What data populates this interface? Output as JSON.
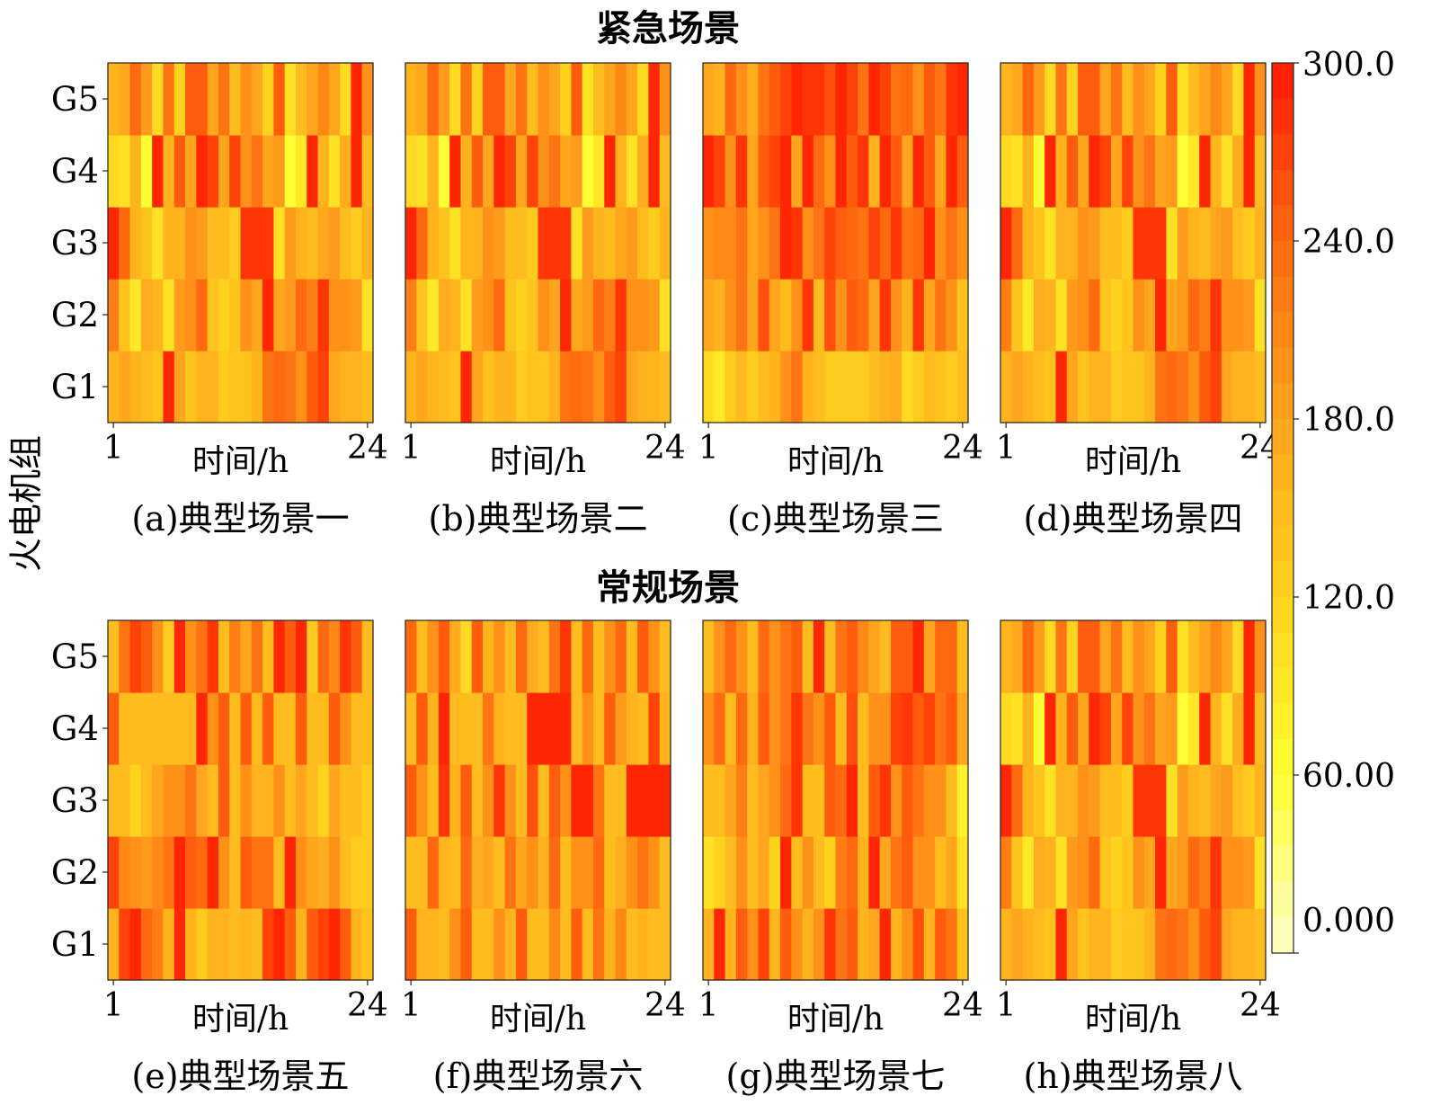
{
  "chart_data": {
    "type": "heatmap",
    "section_titles": [
      "紧急场景",
      "常规场景"
    ],
    "ylabel": "火电机组",
    "y_categories": [
      "G1",
      "G2",
      "G3",
      "G4",
      "G5"
    ],
    "x_tick_labels": [
      "1",
      "24"
    ],
    "xlabel": "时间/h",
    "colormap": [
      "#ffffcc",
      "#ffff33",
      "#ffd21e",
      "#ffa51e",
      "#ff6a10",
      "#ff1a00"
    ],
    "colorbar": {
      "min": 0,
      "max": 300,
      "tick_labels": [
        "0.000",
        "60.00",
        "120.0",
        "180.0",
        "240.0",
        "300.0"
      ]
    },
    "panels": [
      {
        "label": "(a)典型场景一",
        "values": {
          "G5": [
            160,
            175,
            240,
            190,
            110,
            230,
            120,
            250,
            250,
            180,
            230,
            150,
            200,
            180,
            120,
            250,
            100,
            150,
            180,
            210,
            180,
            110,
            290,
            200
          ],
          "G4": [
            110,
            100,
            160,
            60,
            290,
            160,
            250,
            180,
            290,
            270,
            180,
            270,
            200,
            230,
            180,
            190,
            60,
            90,
            290,
            160,
            100,
            170,
            290,
            150
          ],
          "G3": [
            290,
            240,
            160,
            140,
            100,
            160,
            160,
            200,
            190,
            150,
            150,
            130,
            280,
            280,
            280,
            100,
            190,
            160,
            150,
            180,
            190,
            150,
            130,
            160
          ],
          "G2": [
            220,
            140,
            90,
            170,
            160,
            100,
            190,
            200,
            240,
            140,
            120,
            140,
            200,
            180,
            290,
            180,
            190,
            240,
            220,
            280,
            200,
            200,
            190,
            100
          ],
          "G1": [
            160,
            180,
            160,
            150,
            140,
            290,
            180,
            140,
            160,
            160,
            130,
            140,
            140,
            160,
            230,
            240,
            230,
            200,
            250,
            270,
            180,
            160,
            160,
            150
          ]
        }
      },
      {
        "label": "(b)典型场景二",
        "values": {
          "G5": [
            160,
            175,
            240,
            190,
            110,
            230,
            120,
            250,
            250,
            180,
            230,
            150,
            200,
            180,
            120,
            250,
            100,
            150,
            180,
            210,
            180,
            110,
            290,
            200
          ],
          "G4": [
            110,
            100,
            160,
            60,
            290,
            160,
            250,
            180,
            290,
            270,
            180,
            270,
            200,
            230,
            180,
            190,
            60,
            90,
            290,
            160,
            100,
            170,
            290,
            150
          ],
          "G3": [
            290,
            240,
            160,
            140,
            100,
            160,
            160,
            200,
            190,
            150,
            150,
            130,
            280,
            280,
            280,
            100,
            190,
            160,
            150,
            180,
            190,
            150,
            130,
            160
          ],
          "G2": [
            220,
            140,
            90,
            170,
            160,
            100,
            190,
            200,
            240,
            140,
            120,
            140,
            200,
            180,
            290,
            180,
            190,
            240,
            220,
            280,
            200,
            200,
            190,
            100
          ],
          "G1": [
            160,
            180,
            160,
            150,
            140,
            290,
            180,
            140,
            160,
            160,
            130,
            140,
            140,
            160,
            230,
            240,
            230,
            200,
            250,
            270,
            180,
            160,
            160,
            150
          ]
        }
      },
      {
        "label": "(c)典型场景三",
        "values": {
          "G5": [
            180,
            160,
            240,
            200,
            170,
            230,
            250,
            270,
            290,
            280,
            280,
            260,
            290,
            270,
            230,
            290,
            270,
            230,
            240,
            200,
            250,
            230,
            280,
            290
          ],
          "G4": [
            290,
            270,
            200,
            280,
            180,
            250,
            270,
            290,
            180,
            290,
            240,
            200,
            290,
            250,
            280,
            160,
            290,
            250,
            180,
            290,
            250,
            180,
            290,
            250
          ],
          "G3": [
            200,
            210,
            210,
            230,
            180,
            200,
            230,
            290,
            280,
            200,
            230,
            270,
            250,
            240,
            230,
            270,
            240,
            280,
            230,
            240,
            290,
            200,
            230,
            200
          ],
          "G2": [
            180,
            160,
            200,
            230,
            180,
            260,
            180,
            150,
            200,
            280,
            150,
            260,
            200,
            250,
            240,
            180,
            280,
            200,
            160,
            280,
            180,
            230,
            200,
            140
          ],
          "G1": [
            110,
            90,
            130,
            150,
            130,
            150,
            160,
            200,
            230,
            160,
            150,
            130,
            130,
            130,
            130,
            150,
            160,
            170,
            110,
            130,
            150,
            140,
            130,
            150
          ]
        }
      },
      {
        "label": "(d)典型场景四",
        "values": {
          "G5": [
            160,
            175,
            240,
            190,
            110,
            230,
            120,
            250,
            250,
            180,
            230,
            150,
            200,
            180,
            120,
            250,
            100,
            150,
            180,
            210,
            180,
            110,
            290,
            200
          ],
          "G4": [
            110,
            100,
            160,
            60,
            290,
            160,
            250,
            180,
            290,
            270,
            180,
            270,
            200,
            230,
            180,
            190,
            60,
            90,
            290,
            160,
            100,
            170,
            290,
            150
          ],
          "G3": [
            290,
            240,
            160,
            140,
            100,
            160,
            160,
            200,
            190,
            150,
            150,
            130,
            280,
            280,
            280,
            100,
            190,
            160,
            150,
            180,
            190,
            150,
            130,
            160
          ],
          "G2": [
            220,
            140,
            90,
            170,
            160,
            100,
            190,
            200,
            240,
            140,
            120,
            140,
            200,
            180,
            290,
            180,
            190,
            240,
            220,
            280,
            200,
            200,
            190,
            100
          ],
          "G1": [
            160,
            180,
            160,
            150,
            140,
            290,
            180,
            140,
            160,
            160,
            130,
            140,
            140,
            160,
            230,
            240,
            230,
            200,
            250,
            270,
            180,
            160,
            160,
            150
          ]
        }
      },
      {
        "label": "(e)典型场景五",
        "values": {
          "G5": [
            150,
            230,
            270,
            250,
            200,
            130,
            290,
            200,
            230,
            280,
            150,
            220,
            180,
            230,
            150,
            290,
            250,
            290,
            130,
            240,
            210,
            280,
            250,
            150
          ],
          "G4": [
            250,
            150,
            150,
            150,
            150,
            150,
            150,
            150,
            290,
            200,
            250,
            150,
            250,
            150,
            250,
            150,
            150,
            250,
            150,
            150,
            250,
            200,
            150,
            150
          ],
          "G3": [
            150,
            150,
            120,
            150,
            180,
            200,
            200,
            230,
            180,
            150,
            250,
            150,
            200,
            160,
            160,
            200,
            150,
            180,
            150,
            120,
            180,
            150,
            150,
            130
          ],
          "G2": [
            270,
            210,
            200,
            190,
            210,
            230,
            290,
            250,
            240,
            290,
            200,
            150,
            250,
            230,
            230,
            150,
            290,
            200,
            180,
            170,
            200,
            150,
            130,
            130
          ],
          "G1": [
            160,
            270,
            290,
            240,
            220,
            160,
            290,
            160,
            130,
            160,
            160,
            150,
            160,
            150,
            270,
            290,
            250,
            160,
            250,
            270,
            290,
            250,
            160,
            140
          ]
        }
      },
      {
        "label": "(f)典型场景六",
        "values": {
          "G5": [
            240,
            150,
            200,
            250,
            170,
            110,
            250,
            160,
            200,
            150,
            240,
            170,
            150,
            230,
            280,
            150,
            240,
            150,
            200,
            240,
            150,
            250,
            200,
            150
          ],
          "G4": [
            150,
            250,
            160,
            290,
            150,
            150,
            150,
            230,
            160,
            150,
            150,
            290,
            290,
            290,
            290,
            150,
            200,
            150,
            250,
            190,
            160,
            150,
            270,
            160
          ],
          "G3": [
            250,
            200,
            150,
            280,
            160,
            250,
            150,
            200,
            280,
            200,
            150,
            260,
            150,
            250,
            200,
            290,
            290,
            230,
            150,
            150,
            290,
            290,
            290,
            290
          ],
          "G2": [
            150,
            150,
            240,
            160,
            150,
            240,
            170,
            180,
            150,
            230,
            180,
            200,
            160,
            240,
            150,
            200,
            200,
            240,
            150,
            170,
            200,
            230,
            200,
            150
          ],
          "G1": [
            250,
            160,
            160,
            150,
            200,
            250,
            150,
            150,
            200,
            160,
            250,
            150,
            150,
            210,
            150,
            250,
            150,
            230,
            160,
            210,
            150,
            160,
            150,
            150
          ]
        }
      },
      {
        "label": "(g)典型场景七",
        "values": {
          "G5": [
            150,
            200,
            240,
            200,
            150,
            240,
            200,
            230,
            250,
            150,
            290,
            150,
            230,
            250,
            210,
            180,
            150,
            250,
            250,
            290,
            180,
            240,
            240,
            150
          ],
          "G4": [
            200,
            240,
            150,
            240,
            160,
            250,
            200,
            230,
            280,
            230,
            200,
            250,
            150,
            260,
            150,
            200,
            200,
            270,
            280,
            250,
            270,
            230,
            250,
            180
          ],
          "G3": [
            150,
            150,
            180,
            220,
            150,
            180,
            200,
            240,
            280,
            150,
            150,
            250,
            240,
            290,
            150,
            250,
            280,
            200,
            250,
            230,
            200,
            200,
            150,
            80
          ],
          "G2": [
            100,
            120,
            150,
            200,
            150,
            180,
            120,
            290,
            150,
            200,
            150,
            120,
            220,
            240,
            160,
            290,
            180,
            230,
            250,
            200,
            200,
            150,
            180,
            100
          ],
          "G1": [
            160,
            290,
            160,
            250,
            200,
            270,
            160,
            250,
            200,
            160,
            200,
            280,
            230,
            250,
            160,
            180,
            290,
            160,
            200,
            260,
            160,
            250,
            230,
            140
          ]
        }
      },
      {
        "label": "(h)典型场景八",
        "values": {
          "G5": [
            160,
            175,
            240,
            190,
            110,
            230,
            120,
            250,
            250,
            180,
            230,
            150,
            200,
            180,
            120,
            250,
            100,
            150,
            180,
            210,
            180,
            110,
            290,
            200
          ],
          "G4": [
            110,
            100,
            160,
            60,
            290,
            160,
            250,
            180,
            290,
            270,
            180,
            270,
            200,
            230,
            180,
            190,
            60,
            90,
            290,
            160,
            100,
            170,
            290,
            150
          ],
          "G3": [
            290,
            240,
            160,
            140,
            100,
            160,
            160,
            200,
            190,
            150,
            150,
            130,
            280,
            280,
            280,
            100,
            190,
            160,
            150,
            180,
            190,
            150,
            130,
            160
          ],
          "G2": [
            220,
            140,
            90,
            170,
            160,
            100,
            190,
            200,
            240,
            140,
            120,
            140,
            200,
            180,
            290,
            180,
            190,
            240,
            220,
            280,
            200,
            200,
            190,
            100
          ],
          "G1": [
            160,
            180,
            160,
            150,
            140,
            290,
            180,
            140,
            160,
            160,
            130,
            140,
            140,
            160,
            230,
            240,
            230,
            200,
            250,
            270,
            180,
            160,
            160,
            150
          ]
        }
      }
    ]
  }
}
